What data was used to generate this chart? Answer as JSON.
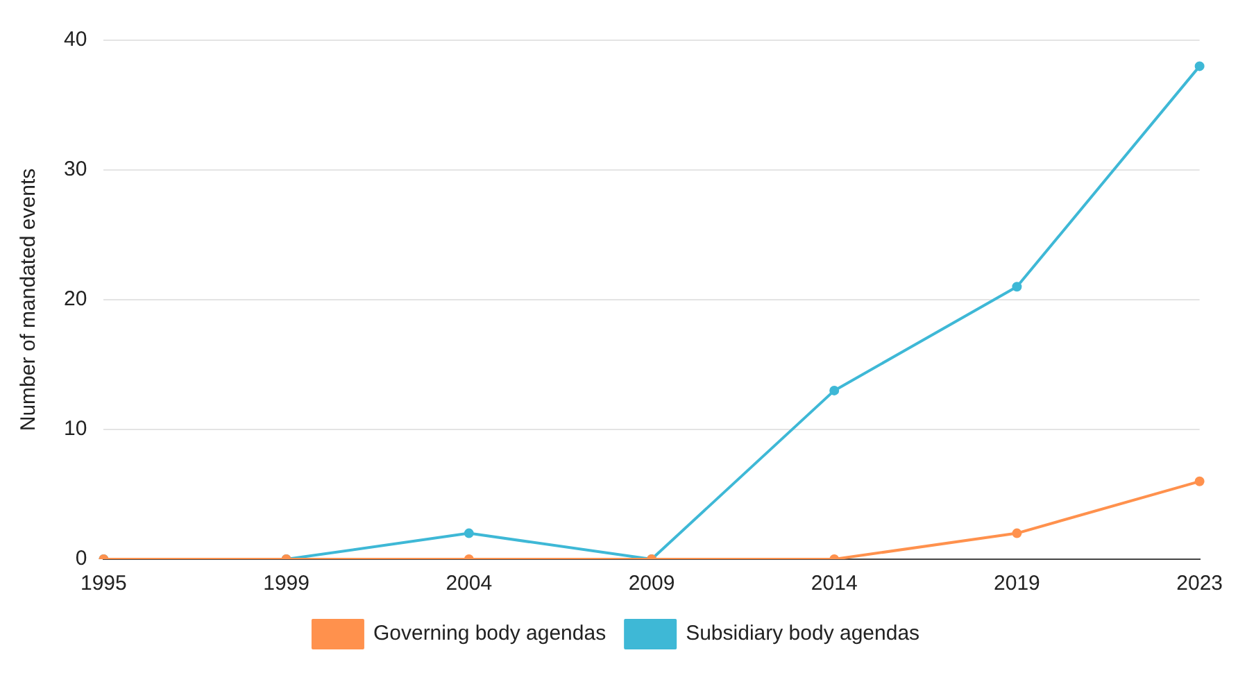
{
  "chart_data": {
    "type": "line",
    "ylabel": "Number of mandated events",
    "categories": [
      "1995",
      "1999",
      "2004",
      "2009",
      "2014",
      "2019",
      "2023"
    ],
    "series": [
      {
        "name": "Governing body agendas",
        "color": "#ff914d",
        "values": [
          0,
          0,
          0,
          0,
          0,
          2,
          6
        ]
      },
      {
        "name": "Subsidiary body agendas",
        "color": "#3eb8d6",
        "values": [
          0,
          0,
          2,
          0,
          13,
          21,
          38
        ]
      }
    ],
    "ylim": [
      0,
      40
    ],
    "yticks": [
      0,
      10,
      20,
      30,
      40
    ],
    "grid": "y",
    "legend": "bottom",
    "marker": "circle",
    "line_style": "solid"
  }
}
